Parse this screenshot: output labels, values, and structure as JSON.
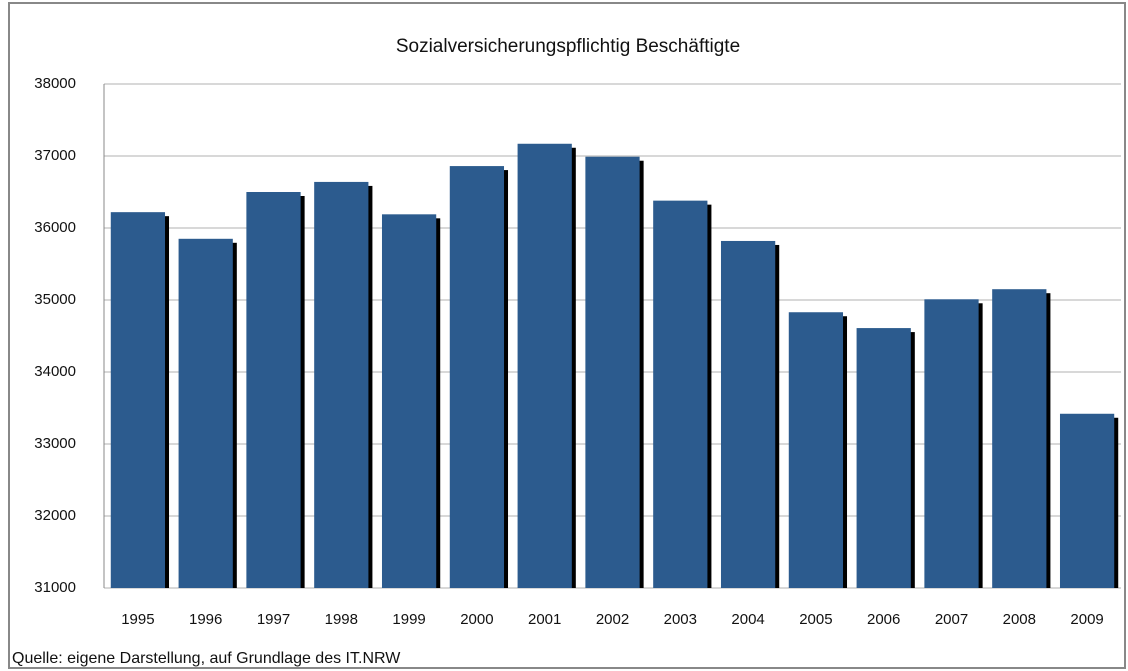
{
  "chart_data": {
    "type": "bar",
    "title": "Sozialversicherungspflichtig Beschäftigte",
    "categories": [
      "1995",
      "1996",
      "1997",
      "1998",
      "1999",
      "2000",
      "2001",
      "2002",
      "2003",
      "2004",
      "2005",
      "2006",
      "2007",
      "2008",
      "2009"
    ],
    "values": [
      36220,
      35850,
      36500,
      36640,
      36190,
      36860,
      37170,
      36990,
      36380,
      35820,
      34830,
      34610,
      35010,
      35150,
      33420
    ],
    "color": "#2c5b8e",
    "ylim": [
      31000,
      38000
    ],
    "yticks": [
      31000,
      32000,
      33000,
      34000,
      35000,
      36000,
      37000,
      38000
    ],
    "grid": true,
    "source": "Quelle: eigene Darstellung, auf Grundlage des IT.NRW"
  }
}
